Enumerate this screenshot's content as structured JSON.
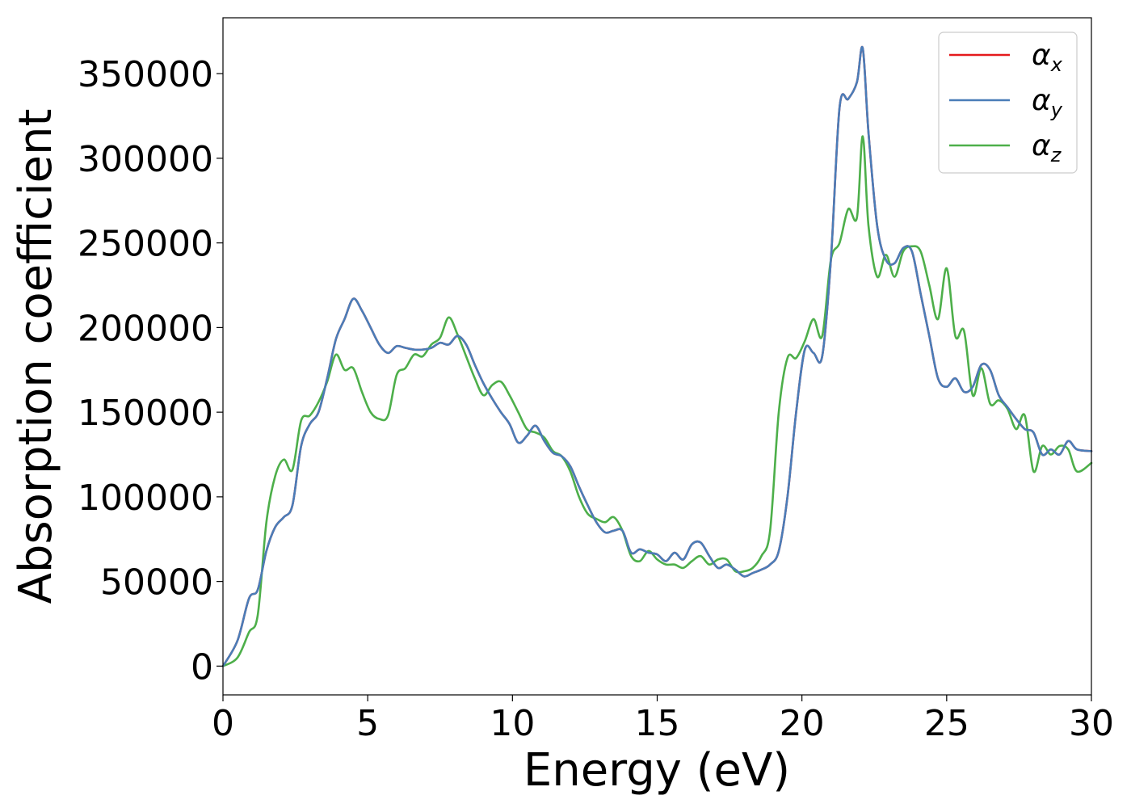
{
  "chart_data": {
    "type": "line",
    "title": "",
    "xlabel": "Energy (eV)",
    "ylabel": "Absorption coefficient",
    "xlim": [
      0,
      30
    ],
    "ylim": [
      -17000,
      383000
    ],
    "xticks": [
      0,
      5,
      10,
      15,
      20,
      25,
      30
    ],
    "xtick_labels": [
      "0",
      "5",
      "10",
      "15",
      "20",
      "25",
      "30"
    ],
    "yticks": [
      0,
      50000,
      100000,
      150000,
      200000,
      250000,
      300000,
      350000
    ],
    "ytick_labels": [
      "0",
      "50000",
      "100000",
      "150000",
      "200000",
      "250000",
      "300000",
      "350000"
    ],
    "grid": false,
    "legend_position": "top-right",
    "series": [
      {
        "name": "α_x",
        "label_main": "α",
        "label_sub": "x",
        "color": "#e41a1c",
        "x": [
          0,
          0.5,
          0.9,
          1.2,
          1.5,
          1.8,
          2.1,
          2.4,
          2.7,
          3.0,
          3.3,
          3.6,
          3.9,
          4.2,
          4.5,
          4.8,
          5.1,
          5.4,
          5.7,
          6.0,
          6.3,
          6.6,
          6.9,
          7.2,
          7.5,
          7.8,
          8.1,
          8.4,
          8.7,
          9.0,
          9.3,
          9.6,
          9.9,
          10.2,
          10.5,
          10.8,
          11.1,
          11.4,
          11.7,
          12.0,
          12.3,
          12.6,
          12.9,
          13.2,
          13.5,
          13.8,
          14.1,
          14.4,
          14.7,
          15.0,
          15.3,
          15.6,
          15.9,
          16.2,
          16.5,
          16.8,
          17.1,
          17.4,
          17.7,
          18.0,
          18.3,
          18.6,
          18.9,
          19.2,
          19.5,
          19.8,
          20.1,
          20.4,
          20.7,
          21.0,
          21.3,
          21.6,
          21.9,
          22.1,
          22.3,
          22.6,
          22.9,
          23.2,
          23.5,
          23.8,
          24.1,
          24.4,
          24.7,
          25.0,
          25.3,
          25.6,
          25.9,
          26.2,
          26.5,
          26.8,
          27.1,
          27.4,
          27.7,
          28.0,
          28.3,
          28.6,
          28.9,
          29.2,
          29.5,
          30.0
        ],
        "values": [
          0,
          15000,
          40000,
          45000,
          68000,
          82000,
          88000,
          95000,
          130000,
          143000,
          150000,
          170000,
          193000,
          205000,
          217000,
          210000,
          200000,
          190000,
          185000,
          189000,
          188000,
          187000,
          187000,
          188000,
          191000,
          190000,
          195000,
          190000,
          178000,
          167000,
          158000,
          150000,
          143000,
          132000,
          136000,
          142000,
          133000,
          126000,
          124000,
          118000,
          106000,
          95000,
          85000,
          79000,
          80000,
          80000,
          67000,
          69000,
          67000,
          66000,
          62000,
          67000,
          63000,
          72000,
          73000,
          65000,
          58000,
          60000,
          57000,
          53000,
          55000,
          57000,
          60000,
          68000,
          100000,
          150000,
          187000,
          185000,
          183000,
          240000,
          330000,
          335000,
          345000,
          365000,
          315000,
          260000,
          240000,
          238000,
          247000,
          245000,
          220000,
          195000,
          170000,
          165000,
          170000,
          162000,
          165000,
          178000,
          175000,
          160000,
          153000,
          146000,
          140000,
          138000,
          125000,
          128000,
          125000,
          133000,
          128000,
          127000
        ]
      },
      {
        "name": "α_y",
        "label_main": "α",
        "label_sub": "y",
        "color": "#4a7db8",
        "x": [
          0,
          0.5,
          0.9,
          1.2,
          1.5,
          1.8,
          2.1,
          2.4,
          2.7,
          3.0,
          3.3,
          3.6,
          3.9,
          4.2,
          4.5,
          4.8,
          5.1,
          5.4,
          5.7,
          6.0,
          6.3,
          6.6,
          6.9,
          7.2,
          7.5,
          7.8,
          8.1,
          8.4,
          8.7,
          9.0,
          9.3,
          9.6,
          9.9,
          10.2,
          10.5,
          10.8,
          11.1,
          11.4,
          11.7,
          12.0,
          12.3,
          12.6,
          12.9,
          13.2,
          13.5,
          13.8,
          14.1,
          14.4,
          14.7,
          15.0,
          15.3,
          15.6,
          15.9,
          16.2,
          16.5,
          16.8,
          17.1,
          17.4,
          17.7,
          18.0,
          18.3,
          18.6,
          18.9,
          19.2,
          19.5,
          19.8,
          20.1,
          20.4,
          20.7,
          21.0,
          21.3,
          21.6,
          21.9,
          22.1,
          22.3,
          22.6,
          22.9,
          23.2,
          23.5,
          23.8,
          24.1,
          24.4,
          24.7,
          25.0,
          25.3,
          25.6,
          25.9,
          26.2,
          26.5,
          26.8,
          27.1,
          27.4,
          27.7,
          28.0,
          28.3,
          28.6,
          28.9,
          29.2,
          29.5,
          30.0
        ],
        "values": [
          0,
          15000,
          40000,
          45000,
          68000,
          82000,
          88000,
          95000,
          130000,
          143000,
          150000,
          170000,
          193000,
          205000,
          217000,
          210000,
          200000,
          190000,
          185000,
          189000,
          188000,
          187000,
          187000,
          188000,
          191000,
          190000,
          195000,
          190000,
          178000,
          167000,
          158000,
          150000,
          143000,
          132000,
          136000,
          142000,
          133000,
          126000,
          124000,
          118000,
          106000,
          95000,
          85000,
          79000,
          80000,
          80000,
          67000,
          69000,
          67000,
          66000,
          62000,
          67000,
          63000,
          72000,
          73000,
          65000,
          58000,
          60000,
          57000,
          53000,
          55000,
          57000,
          60000,
          68000,
          100000,
          150000,
          187000,
          185000,
          183000,
          240000,
          330000,
          335000,
          345000,
          365000,
          315000,
          260000,
          240000,
          238000,
          247000,
          245000,
          220000,
          195000,
          170000,
          165000,
          170000,
          162000,
          165000,
          178000,
          175000,
          160000,
          153000,
          146000,
          140000,
          138000,
          125000,
          128000,
          125000,
          133000,
          128000,
          127000
        ]
      },
      {
        "name": "α_z",
        "label_main": "α",
        "label_sub": "z",
        "color": "#4daf4a",
        "x": [
          0,
          0.5,
          0.9,
          1.2,
          1.5,
          1.8,
          2.1,
          2.4,
          2.7,
          3.0,
          3.3,
          3.6,
          3.9,
          4.2,
          4.5,
          4.8,
          5.1,
          5.4,
          5.7,
          6.0,
          6.3,
          6.6,
          6.9,
          7.2,
          7.5,
          7.8,
          8.1,
          8.4,
          8.7,
          9.0,
          9.3,
          9.6,
          9.9,
          10.2,
          10.5,
          10.8,
          11.1,
          11.4,
          11.7,
          12.0,
          12.3,
          12.6,
          12.9,
          13.2,
          13.5,
          13.8,
          14.1,
          14.4,
          14.7,
          15.0,
          15.3,
          15.6,
          15.9,
          16.2,
          16.5,
          16.8,
          17.1,
          17.4,
          17.7,
          18.0,
          18.3,
          18.6,
          18.9,
          19.2,
          19.5,
          19.8,
          20.1,
          20.4,
          20.7,
          21.0,
          21.3,
          21.6,
          21.9,
          22.1,
          22.3,
          22.6,
          22.9,
          23.2,
          23.5,
          23.8,
          24.1,
          24.4,
          24.7,
          25.0,
          25.3,
          25.6,
          25.9,
          26.2,
          26.5,
          26.8,
          27.1,
          27.4,
          27.7,
          28.0,
          28.3,
          28.6,
          28.9,
          29.2,
          29.5,
          30.0
        ],
        "values": [
          0,
          5000,
          20000,
          30000,
          85000,
          112000,
          122000,
          116000,
          145000,
          148000,
          156000,
          168000,
          184000,
          175000,
          176000,
          162000,
          150000,
          146000,
          148000,
          172000,
          176000,
          184000,
          183000,
          190000,
          194000,
          206000,
          196000,
          183000,
          170000,
          160000,
          166000,
          168000,
          160000,
          150000,
          140000,
          138000,
          135000,
          127000,
          124000,
          115000,
          100000,
          90000,
          87000,
          85000,
          88000,
          80000,
          65000,
          62000,
          68000,
          63000,
          60000,
          60000,
          58000,
          62000,
          65000,
          60000,
          63000,
          63000,
          56000,
          56000,
          58000,
          65000,
          80000,
          150000,
          182000,
          182000,
          192000,
          205000,
          195000,
          240000,
          250000,
          270000,
          265000,
          313000,
          260000,
          230000,
          243000,
          230000,
          245000,
          248000,
          245000,
          225000,
          205000,
          235000,
          195000,
          198000,
          160000,
          176000,
          155000,
          157000,
          152000,
          140000,
          148000,
          115000,
          130000,
          125000,
          130000,
          128000,
          115000,
          120000
        ]
      }
    ]
  }
}
